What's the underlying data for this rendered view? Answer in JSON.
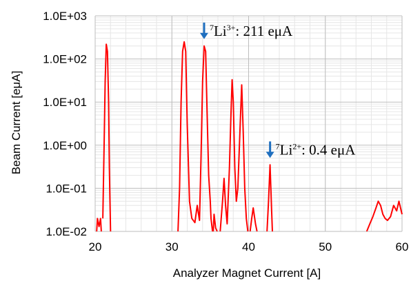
{
  "chart_data": {
    "type": "line",
    "title": "",
    "xlabel": "Analyzer Magnet Current [A]",
    "ylabel": "Beam Current [eμA]",
    "xlim": [
      20,
      60
    ],
    "ylim": [
      0.01,
      1000
    ],
    "yscale": "log",
    "x_ticks": [
      "20",
      "30",
      "40",
      "50",
      "60"
    ],
    "y_ticks": [
      "1.0E-02",
      "1.0E-01",
      "1.0E+00",
      "1.0E+01",
      "1.0E+02",
      "1.0E+03"
    ],
    "grid": true,
    "line_color": "#ff0000",
    "arrow_color": "#1f6fbf",
    "series": [
      {
        "segments": [
          [
            [
              20.2,
              0.01
            ],
            [
              20.3,
              0.02
            ],
            [
              20.5,
              0.013
            ],
            [
              20.7,
              0.02
            ],
            [
              20.8,
              0.01
            ]
          ],
          [
            [
              21.0,
              0.02
            ],
            [
              21.1,
              0.2
            ],
            [
              21.2,
              2
            ],
            [
              21.3,
              30
            ],
            [
              21.45,
              220
            ],
            [
              21.6,
              150
            ],
            [
              21.75,
              10
            ],
            [
              21.85,
              0.3
            ],
            [
              22.0,
              0.01
            ]
          ],
          [
            [
              30.8,
              0.01
            ],
            [
              31.0,
              0.1
            ],
            [
              31.2,
              10
            ],
            [
              31.4,
              150
            ],
            [
              31.6,
              250
            ],
            [
              31.8,
              150
            ],
            [
              32.0,
              3
            ],
            [
              32.3,
              0.05
            ],
            [
              32.6,
              0.02
            ],
            [
              33.0,
              0.016
            ],
            [
              33.3,
              0.04
            ],
            [
              33.6,
              0.018
            ],
            [
              33.8,
              0.5
            ],
            [
              34.0,
              30
            ],
            [
              34.2,
              200
            ],
            [
              34.4,
              150
            ],
            [
              34.6,
              5
            ],
            [
              34.8,
              0.2
            ],
            [
              35.0,
              0.05
            ],
            [
              35.1,
              0.02
            ],
            [
              35.3,
              0.01
            ]
          ],
          [
            [
              35.4,
              0.01
            ],
            [
              35.5,
              0.025
            ],
            [
              35.7,
              0.012
            ],
            [
              35.9,
              0.01
            ]
          ],
          [
            [
              36.3,
              0.01
            ],
            [
              36.6,
              0.05
            ],
            [
              36.8,
              0.17
            ],
            [
              37.0,
              0.04
            ],
            [
              37.2,
              0.015
            ],
            [
              37.5,
              0.3
            ],
            [
              37.7,
              5
            ],
            [
              37.85,
              33
            ],
            [
              38.0,
              10
            ],
            [
              38.2,
              0.3
            ],
            [
              38.4,
              0.05
            ],
            [
              38.6,
              0.1
            ],
            [
              38.9,
              3
            ],
            [
              39.1,
              25
            ],
            [
              39.3,
              2
            ],
            [
              39.5,
              0.1
            ],
            [
              39.7,
              0.02
            ],
            [
              39.9,
              0.01
            ]
          ],
          [
            [
              40.2,
              0.01
            ],
            [
              40.4,
              0.02
            ],
            [
              40.6,
              0.035
            ],
            [
              40.9,
              0.015
            ],
            [
              41.1,
              0.01
            ]
          ],
          [
            [
              42.4,
              0.01
            ],
            [
              42.6,
              0.05
            ],
            [
              42.8,
              0.35
            ],
            [
              43.0,
              0.03
            ],
            [
              43.1,
              0.01
            ]
          ],
          [
            [
              55.4,
              0.01
            ],
            [
              55.8,
              0.015
            ],
            [
              56.2,
              0.022
            ],
            [
              56.6,
              0.035
            ],
            [
              56.9,
              0.05
            ],
            [
              57.2,
              0.04
            ],
            [
              57.5,
              0.025
            ],
            [
              57.8,
              0.02
            ],
            [
              58.1,
              0.018
            ],
            [
              58.5,
              0.022
            ],
            [
              58.9,
              0.04
            ],
            [
              59.3,
              0.03
            ],
            [
              59.6,
              0.05
            ],
            [
              60.0,
              0.025
            ]
          ]
        ]
      }
    ],
    "annotations": [
      {
        "base": "7",
        "element": "Li",
        "charge": "3+",
        "text": ": 211 eμA",
        "x": 34.2,
        "y": 200
      },
      {
        "base": "7",
        "element": "Li",
        "charge": "2+",
        "text": ": 0.4 eμA",
        "x": 42.8,
        "y": 0.35
      }
    ]
  }
}
